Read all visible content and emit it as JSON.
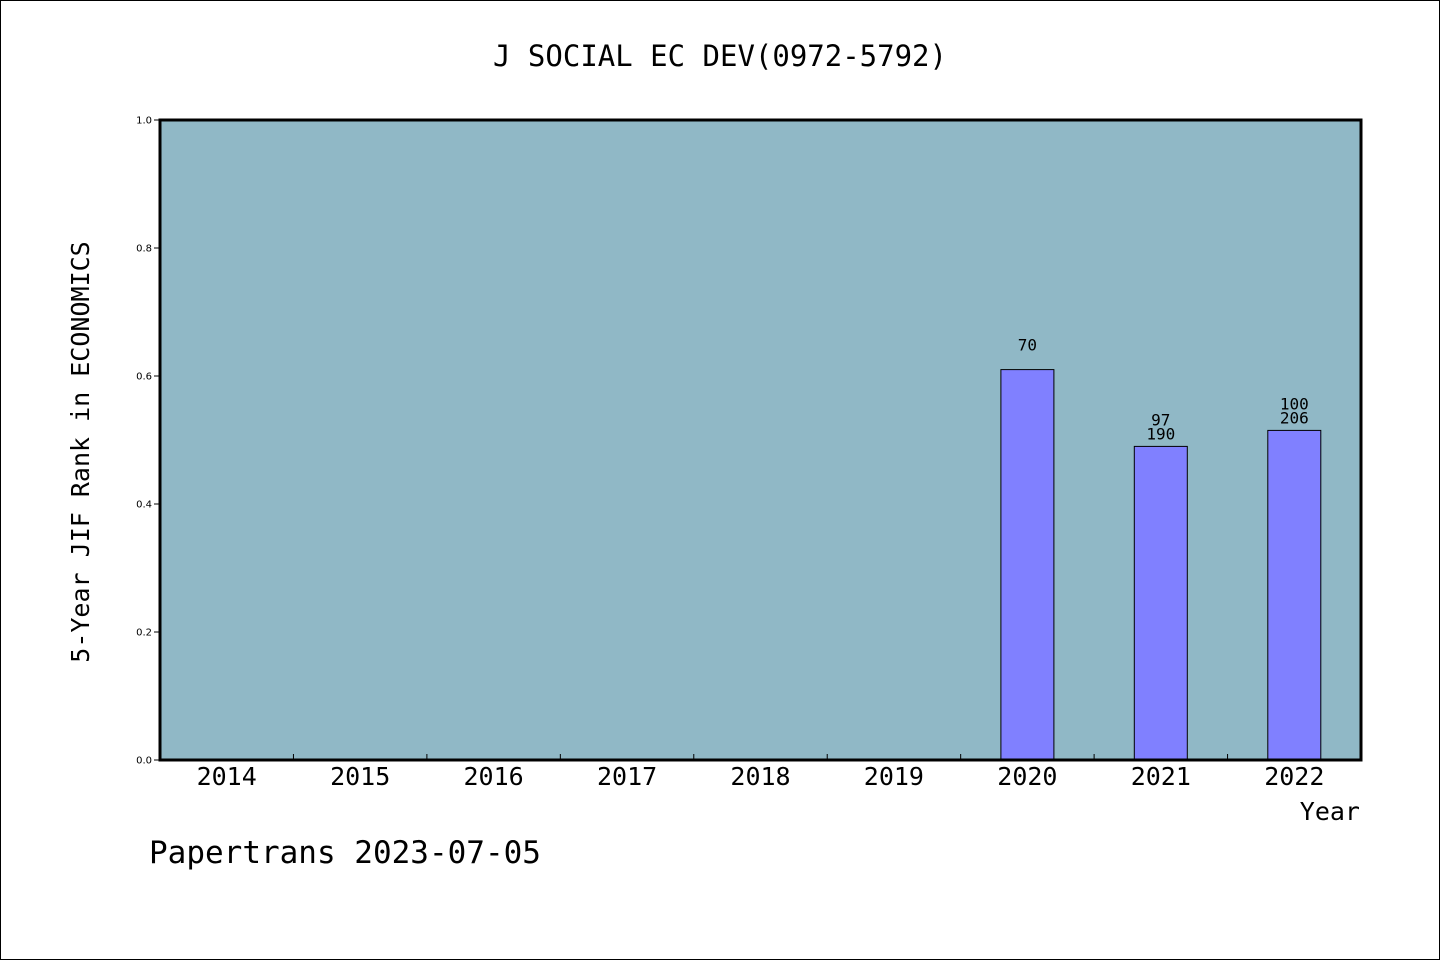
{
  "chart_data": {
    "type": "bar",
    "title": "J SOCIAL EC DEV(0972-5792)",
    "xlabel": "Year",
    "ylabel": "5-Year JIF Rank in ECONOMICS",
    "categories": [
      "2014",
      "2015",
      "2016",
      "2017",
      "2018",
      "2019",
      "2020",
      "2021",
      "2022"
    ],
    "values": [
      null,
      null,
      null,
      null,
      null,
      null,
      0.61,
      0.49,
      0.515
    ],
    "bar_labels": [
      {
        "category": "2020",
        "lines": [
          "70"
        ]
      },
      {
        "category": "2021",
        "lines": [
          "97",
          "190"
        ]
      },
      {
        "category": "2022",
        "lines": [
          "100",
          "206"
        ]
      }
    ],
    "ylim": [
      0,
      1
    ],
    "yticks": [
      "0.0",
      "0.2",
      "0.4",
      "0.6",
      "0.8",
      "1.0"
    ],
    "grid": false,
    "colors": {
      "plot_background": "#90b8c6",
      "bar": "#8080ff",
      "bar_edge": "#000000"
    }
  },
  "footer": {
    "text": "Papertrans 2023-07-05"
  }
}
